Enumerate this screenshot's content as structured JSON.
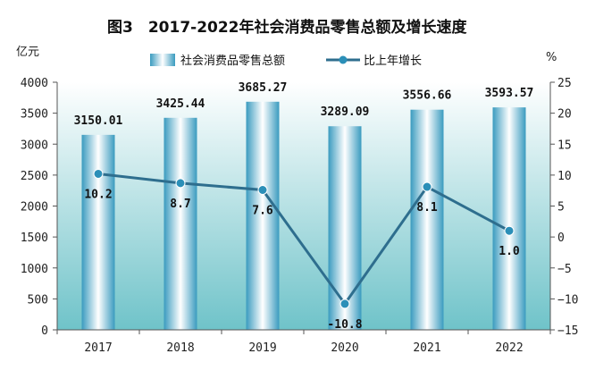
{
  "chart_data": {
    "type": "bar+line",
    "title": "图3　2017-2022年社会消费品零售总额及增长速度",
    "left_unit": "亿元",
    "right_unit": "%",
    "categories": [
      "2017",
      "2018",
      "2019",
      "2020",
      "2021",
      "2022"
    ],
    "series": [
      {
        "name": "社会消费品零售总额",
        "type": "bar",
        "axis": "left",
        "values": [
          3150.01,
          3425.44,
          3685.27,
          3289.09,
          3556.66,
          3593.57
        ],
        "labels": [
          "3150.01",
          "3425.44",
          "3685.27",
          "3289.09",
          "3556.66",
          "3593.57"
        ]
      },
      {
        "name": "比上年增长",
        "type": "line",
        "axis": "right",
        "values": [
          10.2,
          8.7,
          7.6,
          -10.8,
          8.1,
          1.0
        ],
        "labels": [
          "10.2",
          "8.7",
          "7.6",
          "-10.8",
          "8.1",
          "1.0"
        ]
      }
    ],
    "left_axis": {
      "min": 0,
      "max": 4000,
      "step": 500,
      "ticks": [
        "0",
        "500",
        "1000",
        "1500",
        "2000",
        "2500",
        "3000",
        "3500",
        "4000"
      ]
    },
    "right_axis": {
      "min": -15,
      "max": 25,
      "step": 5,
      "ticks": [
        "−15",
        "−10",
        "−5",
        "0",
        "5",
        "10",
        "15",
        "20",
        "25"
      ]
    },
    "legend_position": "top",
    "grid": false,
    "colors": {
      "background_top": "#ffffff",
      "background_bottom": "#6fc3c9",
      "bar_edge": "#3a9bbf",
      "bar_center": "#ffffff",
      "line": "#2e6e8e",
      "marker": "#2b8fb8"
    }
  }
}
